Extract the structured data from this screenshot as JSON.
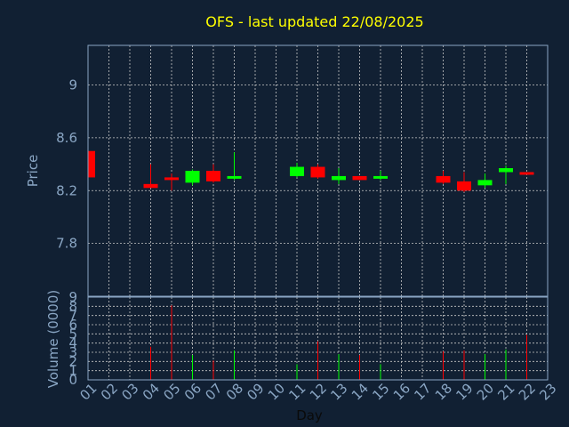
{
  "title": "OFS - last updated 22/08/2025",
  "colors": {
    "background": "#112033",
    "title": "#ffff00",
    "axis": "#8aa6c4",
    "grid": "#c8c8c8",
    "up": "#00ff00",
    "down": "#ff0000"
  },
  "chart_data": [
    {
      "type": "candlestick",
      "ylabel": "Price",
      "ylim": [
        7.4,
        9.3
      ],
      "yticks": [
        7.8,
        8.2,
        8.6,
        9
      ],
      "ytick_labels": [
        "7.8",
        "8.2",
        "8.6",
        "9"
      ],
      "grid": true,
      "candles": [
        {
          "day": 1,
          "open": 8.5,
          "high": 8.5,
          "low": 8.3,
          "close": 8.3
        },
        {
          "day": 4,
          "open": 8.25,
          "high": 8.4,
          "low": 8.22,
          "close": 8.22
        },
        {
          "day": 5,
          "open": 8.3,
          "high": 8.33,
          "low": 8.2,
          "close": 8.28
        },
        {
          "day": 6,
          "open": 8.26,
          "high": 8.36,
          "low": 8.24,
          "close": 8.35
        },
        {
          "day": 7,
          "open": 8.35,
          "high": 8.4,
          "low": 8.26,
          "close": 8.27
        },
        {
          "day": 8,
          "open": 8.29,
          "high": 8.49,
          "low": 8.28,
          "close": 8.31
        },
        {
          "day": 11,
          "open": 8.31,
          "high": 8.41,
          "low": 8.3,
          "close": 8.38
        },
        {
          "day": 12,
          "open": 8.38,
          "high": 8.4,
          "low": 8.29,
          "close": 8.3
        },
        {
          "day": 13,
          "open": 8.28,
          "high": 8.37,
          "low": 8.25,
          "close": 8.31
        },
        {
          "day": 14,
          "open": 8.31,
          "high": 8.31,
          "low": 8.28,
          "close": 8.28
        },
        {
          "day": 15,
          "open": 8.29,
          "high": 8.35,
          "low": 8.28,
          "close": 8.31
        },
        {
          "day": 18,
          "open": 8.31,
          "high": 8.35,
          "low": 8.25,
          "close": 8.26
        },
        {
          "day": 19,
          "open": 8.27,
          "high": 8.34,
          "low": 8.19,
          "close": 8.2
        },
        {
          "day": 20,
          "open": 8.24,
          "high": 8.33,
          "low": 8.22,
          "close": 8.28
        },
        {
          "day": 21,
          "open": 8.34,
          "high": 8.39,
          "low": 8.25,
          "close": 8.37
        },
        {
          "day": 22,
          "open": 8.34,
          "high": 8.34,
          "low": 8.32,
          "close": 8.32
        }
      ]
    },
    {
      "type": "bar",
      "ylabel": "Volume (0000)",
      "xlabel": "Day",
      "ylim": [
        0,
        9
      ],
      "yticks": [
        0,
        1,
        2,
        3,
        4,
        5,
        6,
        7,
        8,
        9
      ],
      "ytick_labels": [
        "0",
        "1",
        "2",
        "3",
        "4",
        "5",
        "6",
        "7",
        "8",
        "9"
      ],
      "x_ticks": [
        "01",
        "02",
        "03",
        "04",
        "05",
        "06",
        "07",
        "08",
        "09",
        "10",
        "11",
        "12",
        "13",
        "14",
        "15",
        "16",
        "17",
        "18",
        "19",
        "20",
        "21",
        "22",
        "23"
      ],
      "grid": true,
      "bars": [
        {
          "day": 1,
          "value": 0.3,
          "dir": "down"
        },
        {
          "day": 4,
          "value": 3.6,
          "dir": "down"
        },
        {
          "day": 5,
          "value": 8.1,
          "dir": "down"
        },
        {
          "day": 6,
          "value": 2.7,
          "dir": "up"
        },
        {
          "day": 7,
          "value": 2.1,
          "dir": "down"
        },
        {
          "day": 8,
          "value": 3.2,
          "dir": "up"
        },
        {
          "day": 11,
          "value": 1.7,
          "dir": "up"
        },
        {
          "day": 12,
          "value": 4.2,
          "dir": "down"
        },
        {
          "day": 13,
          "value": 2.8,
          "dir": "up"
        },
        {
          "day": 14,
          "value": 2.7,
          "dir": "down"
        },
        {
          "day": 15,
          "value": 1.7,
          "dir": "up"
        },
        {
          "day": 18,
          "value": 3.1,
          "dir": "down"
        },
        {
          "day": 19,
          "value": 3.2,
          "dir": "down"
        },
        {
          "day": 20,
          "value": 2.8,
          "dir": "up"
        },
        {
          "day": 21,
          "value": 3.3,
          "dir": "up"
        },
        {
          "day": 22,
          "value": 4.9,
          "dir": "down"
        }
      ]
    }
  ]
}
